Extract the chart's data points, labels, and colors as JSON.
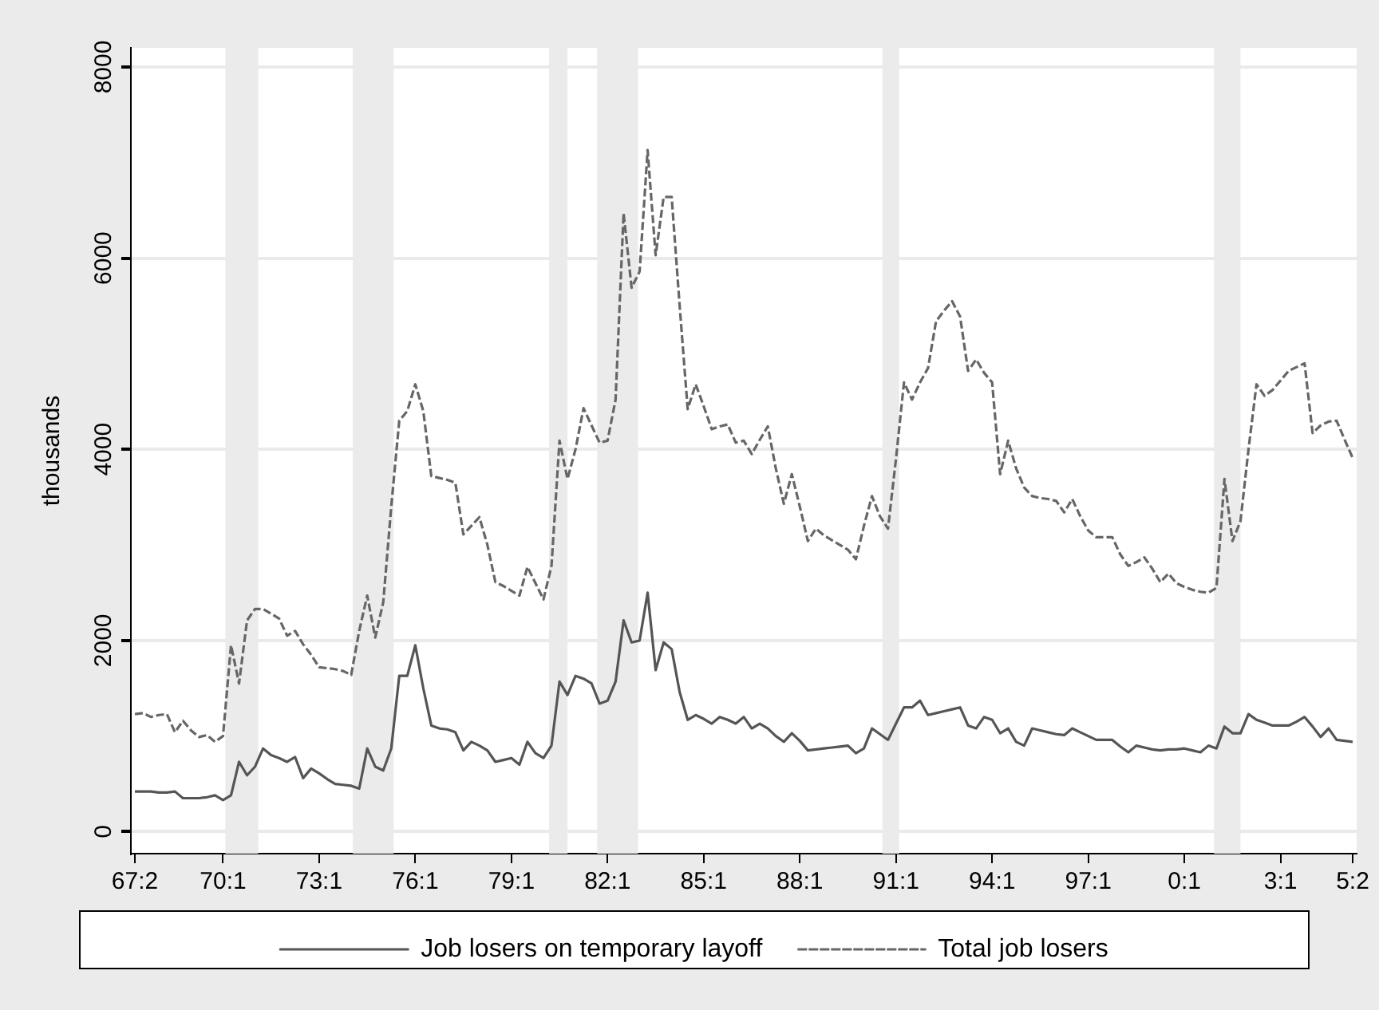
{
  "chart_data": {
    "type": "line",
    "ylabel": "thousands",
    "categories": [
      "67:2",
      null,
      null,
      null,
      null,
      null,
      null,
      null,
      null,
      null,
      null,
      "70:1",
      null,
      null,
      null,
      null,
      null,
      null,
      null,
      null,
      null,
      null,
      null,
      "73:1",
      null,
      null,
      null,
      null,
      null,
      null,
      null,
      null,
      null,
      null,
      null,
      "76:1",
      null,
      null,
      null,
      null,
      null,
      null,
      null,
      null,
      null,
      null,
      null,
      "79:1",
      null,
      null,
      null,
      null,
      null,
      null,
      null,
      null,
      null,
      null,
      null,
      "82:1",
      null,
      null,
      null,
      null,
      null,
      null,
      null,
      null,
      null,
      null,
      null,
      "85:1",
      null,
      null,
      null,
      null,
      null,
      null,
      null,
      null,
      null,
      null,
      null,
      "88:1",
      null,
      null,
      null,
      null,
      null,
      null,
      null,
      null,
      null,
      null,
      null,
      "91:1",
      null,
      null,
      null,
      null,
      null,
      null,
      null,
      null,
      null,
      null,
      null,
      "94:1",
      null,
      null,
      null,
      null,
      null,
      null,
      null,
      null,
      null,
      null,
      null,
      "97:1",
      null,
      null,
      null,
      null,
      null,
      null,
      null,
      null,
      null,
      null,
      null,
      "0:1",
      null,
      null,
      null,
      null,
      null,
      null,
      null,
      null,
      null,
      null,
      null,
      "3:1",
      null,
      null,
      null,
      null,
      null,
      null,
      null,
      null,
      "5:2"
    ],
    "ylim": [
      -230,
      8200
    ],
    "yticks": [
      0,
      2000,
      4000,
      6000,
      8000
    ],
    "grid": "y",
    "legend": "bottom",
    "marker": "none",
    "series": [
      {
        "name": "Job losers on temporary layoff",
        "color": "#555555",
        "line_style": "solid",
        "values": [
          420,
          420,
          420,
          410,
          410,
          420,
          350,
          350,
          350,
          360,
          380,
          330,
          380,
          730,
          590,
          680,
          870,
          800,
          770,
          730,
          780,
          560,
          660,
          610,
          550,
          500,
          490,
          480,
          450,
          870,
          680,
          640,
          870,
          1630,
          1630,
          1950,
          1500,
          1110,
          1080,
          1070,
          1040,
          850,
          940,
          900,
          850,
          730,
          750,
          770,
          700,
          940,
          820,
          770,
          900,
          1570,
          1430,
          1630,
          1600,
          1550,
          1340,
          1370,
          1570,
          2210,
          1980,
          2000,
          2500,
          1690,
          1980,
          1910,
          1460,
          1170,
          1220,
          1180,
          1130,
          1200,
          1170,
          1130,
          1200,
          1080,
          1130,
          1080,
          1000,
          940,
          1030,
          950,
          850,
          860,
          870,
          880,
          890,
          900,
          820,
          870,
          1080,
          1020,
          960,
          1130,
          1300,
          1300,
          1370,
          1220,
          1240,
          1260,
          1280,
          1300,
          1110,
          1080,
          1200,
          1170,
          1030,
          1080,
          940,
          900,
          1080,
          1060,
          1040,
          1020,
          1010,
          1080,
          1040,
          1000,
          960,
          960,
          960,
          890,
          830,
          900,
          880,
          860,
          850,
          860,
          860,
          870,
          850,
          830,
          900,
          870,
          1100,
          1030,
          1030,
          1230,
          1170,
          1140,
          1110,
          1110,
          1110,
          1150,
          1200,
          1100,
          990,
          1080,
          960,
          950,
          940
        ]
      },
      {
        "name": "Total job losers",
        "color": "#666666",
        "line_style": "dashed",
        "values": [
          1230,
          1240,
          1200,
          1220,
          1230,
          1040,
          1160,
          1060,
          990,
          1010,
          940,
          1000,
          1950,
          1550,
          2210,
          2330,
          2330,
          2280,
          2230,
          2050,
          2100,
          1960,
          1850,
          1720,
          1710,
          1700,
          1680,
          1640,
          2100,
          2470,
          2030,
          2400,
          3400,
          4300,
          4400,
          4680,
          4400,
          3720,
          3700,
          3680,
          3650,
          3110,
          3200,
          3290,
          3000,
          2610,
          2570,
          2520,
          2470,
          2770,
          2600,
          2430,
          2780,
          4090,
          3690,
          4000,
          4430,
          4250,
          4070,
          4090,
          4520,
          6470,
          5690,
          5860,
          7130,
          6030,
          6640,
          6640,
          5500,
          4420,
          4680,
          4450,
          4210,
          4240,
          4260,
          4070,
          4090,
          3950,
          4100,
          4240,
          3800,
          3430,
          3740,
          3400,
          3040,
          3170,
          3100,
          3050,
          3000,
          2950,
          2850,
          3200,
          3510,
          3300,
          3170,
          3900,
          4700,
          4520,
          4700,
          4850,
          5340,
          5450,
          5550,
          5390,
          4820,
          4940,
          4800,
          4700,
          3740,
          4090,
          3800,
          3600,
          3510,
          3490,
          3480,
          3460,
          3340,
          3480,
          3300,
          3150,
          3080,
          3080,
          3080,
          2900,
          2780,
          2820,
          2870,
          2750,
          2610,
          2700,
          2600,
          2560,
          2530,
          2510,
          2500,
          2550,
          3690,
          3040,
          3250,
          4000,
          4680,
          4560,
          4620,
          4720,
          4820,
          4860,
          4900,
          4170,
          4250,
          4290,
          4300,
          4100,
          3910
        ]
      }
    ]
  }
}
